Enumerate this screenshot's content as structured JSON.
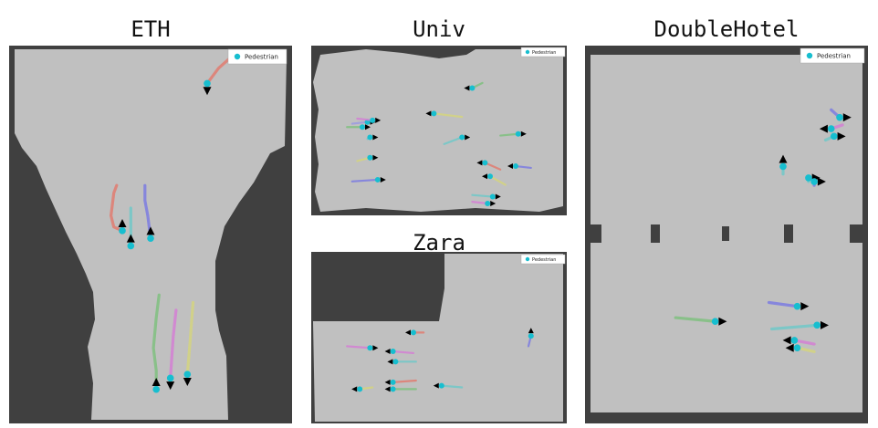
{
  "chart_data": [
    {
      "type": "scatter",
      "title": "ETH",
      "legend": {
        "label": "Pedestrian",
        "placement": "top-right"
      },
      "colors": {
        "floor": "#c0c0c0",
        "obstacle": "#404040",
        "pedestrian": "#17becf",
        "arrow": "#000000"
      },
      "tracks": [
        {
          "color": "#e07b70",
          "points": [
            [
              80,
              2
            ],
            [
              74,
              6
            ],
            [
              70,
              10
            ]
          ],
          "arrow": "down"
        },
        {
          "color": "#e07b70",
          "points": [
            [
              38,
              37
            ],
            [
              37,
              39
            ],
            [
              36,
              45
            ],
            [
              37,
              48
            ],
            [
              40,
              49
            ]
          ],
          "arrow": "up"
        },
        {
          "color": "#7b7be0",
          "points": [
            [
              48,
              37
            ],
            [
              48,
              41
            ],
            [
              49,
              45
            ],
            [
              50,
              51
            ]
          ],
          "arrow": "up"
        },
        {
          "color": "#70c8c8",
          "points": [
            [
              43,
              43
            ],
            [
              43,
              47
            ],
            [
              43,
              53
            ]
          ],
          "arrow": "up"
        },
        {
          "color": "#7fbf7f",
          "points": [
            [
              53,
              66
            ],
            [
              52,
              72
            ],
            [
              51,
              80
            ],
            [
              52,
              86
            ],
            [
              52,
              91
            ]
          ],
          "arrow": "up"
        },
        {
          "color": "#d47fd4",
          "points": [
            [
              59,
              70
            ],
            [
              58,
              77
            ],
            [
              57,
              88
            ]
          ],
          "arrow": "down"
        },
        {
          "color": "#d4d47f",
          "points": [
            [
              65,
              68
            ],
            [
              64,
              78
            ],
            [
              63,
              87
            ]
          ],
          "arrow": "down"
        }
      ]
    },
    {
      "type": "scatter",
      "title": "Univ",
      "legend": {
        "label": "Pedestrian",
        "placement": "top-right"
      },
      "colors": {
        "floor": "#c0c0c0",
        "obstacle": "#404040",
        "pedestrian": "#17becf",
        "arrow": "#000000"
      },
      "tracks": [
        {
          "color": "#9a9ae0",
          "points": [
            [
              16,
              46
            ],
            [
              22,
              45
            ]
          ],
          "arrow": "right"
        },
        {
          "color": "#d47fd4",
          "points": [
            [
              18,
              43
            ],
            [
              24,
              44
            ]
          ],
          "arrow": "right"
        },
        {
          "color": "#7fbf7f",
          "points": [
            [
              14,
              48
            ],
            [
              20,
              48
            ]
          ],
          "arrow": "right"
        },
        {
          "color": "#70c8c8",
          "points": [
            [
              22,
              55
            ],
            [
              23,
              54
            ]
          ],
          "arrow": "right"
        },
        {
          "color": "#d4d47f",
          "points": [
            [
              18,
              68
            ],
            [
              23,
              66
            ]
          ],
          "arrow": "right"
        },
        {
          "color": "#7b7be0",
          "points": [
            [
              16,
              80
            ],
            [
              26,
              79
            ]
          ],
          "arrow": "right"
        },
        {
          "color": "#d4d47f",
          "points": [
            [
              59,
              42
            ],
            [
              48,
              40
            ]
          ],
          "arrow": "left"
        },
        {
          "color": "#70c8c8",
          "points": [
            [
              52,
              58
            ],
            [
              59,
              54
            ]
          ],
          "arrow": "right"
        },
        {
          "color": "#7fbf7f",
          "points": [
            [
              67,
              22
            ],
            [
              63,
              25
            ]
          ],
          "arrow": "left"
        },
        {
          "color": "#7fbf7f",
          "points": [
            [
              74,
              53
            ],
            [
              81,
              52
            ]
          ],
          "arrow": "right"
        },
        {
          "color": "#d4d47f",
          "points": [
            [
              76,
              82
            ],
            [
              70,
              77
            ]
          ],
          "arrow": "left"
        },
        {
          "color": "#e07b70",
          "points": [
            [
              74,
              73
            ],
            [
              68,
              69
            ]
          ],
          "arrow": "left"
        },
        {
          "color": "#7b7be0",
          "points": [
            [
              86,
              72
            ],
            [
              80,
              71
            ]
          ],
          "arrow": "left"
        },
        {
          "color": "#d47fd4",
          "points": [
            [
              63,
              92
            ],
            [
              69,
              93
            ]
          ],
          "arrow": "right"
        },
        {
          "color": "#70c8c8",
          "points": [
            [
              63,
              88
            ],
            [
              71,
              89
            ]
          ],
          "arrow": "right"
        }
      ]
    },
    {
      "type": "scatter",
      "title": "Zara",
      "legend": {
        "label": "Pedestrian",
        "placement": "top-right"
      },
      "colors": {
        "floor": "#c0c0c0",
        "obstacle": "#404040",
        "pedestrian": "#17becf",
        "arrow": "#000000"
      },
      "tracks": [
        {
          "color": "#e07b70",
          "points": [
            [
              44,
              47
            ],
            [
              40,
              47
            ]
          ],
          "arrow": "left"
        },
        {
          "color": "#d47fd4",
          "points": [
            [
              14,
              55
            ],
            [
              23,
              56
            ]
          ],
          "arrow": "right"
        },
        {
          "color": "#d47fd4",
          "points": [
            [
              40,
              59
            ],
            [
              32,
              58
            ]
          ],
          "arrow": "left"
        },
        {
          "color": "#70c8c8",
          "points": [
            [
              41,
              64
            ],
            [
              33,
              64
            ]
          ],
          "arrow": "left"
        },
        {
          "color": "#7fbf7f",
          "points": [
            [
              41,
              80
            ],
            [
              32,
              80
            ]
          ],
          "arrow": "left"
        },
        {
          "color": "#e07b70",
          "points": [
            [
              41,
              75
            ],
            [
              32,
              76
            ]
          ],
          "arrow": "left"
        },
        {
          "color": "#d4d47f",
          "points": [
            [
              24,
              79
            ],
            [
              19,
              80
            ]
          ],
          "arrow": "left"
        },
        {
          "color": "#70c8c8",
          "points": [
            [
              59,
              79
            ],
            [
              51,
              78
            ]
          ],
          "arrow": "left"
        },
        {
          "color": "#7b7be0",
          "points": [
            [
              85,
              55
            ],
            [
              86,
              49
            ]
          ],
          "arrow": "up"
        }
      ]
    },
    {
      "type": "scatter",
      "title": "DoubleHotel",
      "legend": {
        "label": "Pedestrian",
        "placement": "top-right"
      },
      "colors": {
        "floor": "#c0c0c0",
        "obstacle": "#404040",
        "pedestrian": "#17becf",
        "arrow": "#000000"
      },
      "tracks": [
        {
          "color": "#d47fd4",
          "points": [
            [
              91,
              21
            ],
            [
              87,
              22
            ]
          ],
          "arrow": "left"
        },
        {
          "color": "#70c8c8",
          "points": [
            [
              85,
              25
            ],
            [
              88,
              24
            ]
          ],
          "arrow": "right"
        },
        {
          "color": "#7b7be0",
          "points": [
            [
              87,
              17
            ],
            [
              90,
              19
            ]
          ],
          "arrow": "right"
        },
        {
          "color": "#70c8c8",
          "points": [
            [
              70,
              34
            ],
            [
              70,
              32
            ]
          ],
          "arrow": "up"
        },
        {
          "color": "#70c8c8",
          "points": [
            [
              79,
              36
            ],
            [
              79,
              35
            ]
          ],
          "arrow": "right"
        },
        {
          "color": "#7b7be0",
          "points": [
            [
              81,
              37
            ],
            [
              81,
              36
            ]
          ],
          "arrow": "right"
        },
        {
          "color": "#7fbf7f",
          "points": [
            [
              32,
              72
            ],
            [
              46,
              73
            ]
          ],
          "arrow": "right"
        },
        {
          "color": "#7b7be0",
          "points": [
            [
              65,
              68
            ],
            [
              75,
              69
            ]
          ],
          "arrow": "right"
        },
        {
          "color": "#70c8c8",
          "points": [
            [
              66,
              75
            ],
            [
              82,
              74
            ]
          ],
          "arrow": "right"
        },
        {
          "color": "#d47fd4",
          "points": [
            [
              81,
              79
            ],
            [
              74,
              78
            ]
          ],
          "arrow": "left"
        },
        {
          "color": "#d4d47f",
          "points": [
            [
              81,
              81
            ],
            [
              75,
              80
            ]
          ],
          "arrow": "left"
        }
      ]
    }
  ]
}
